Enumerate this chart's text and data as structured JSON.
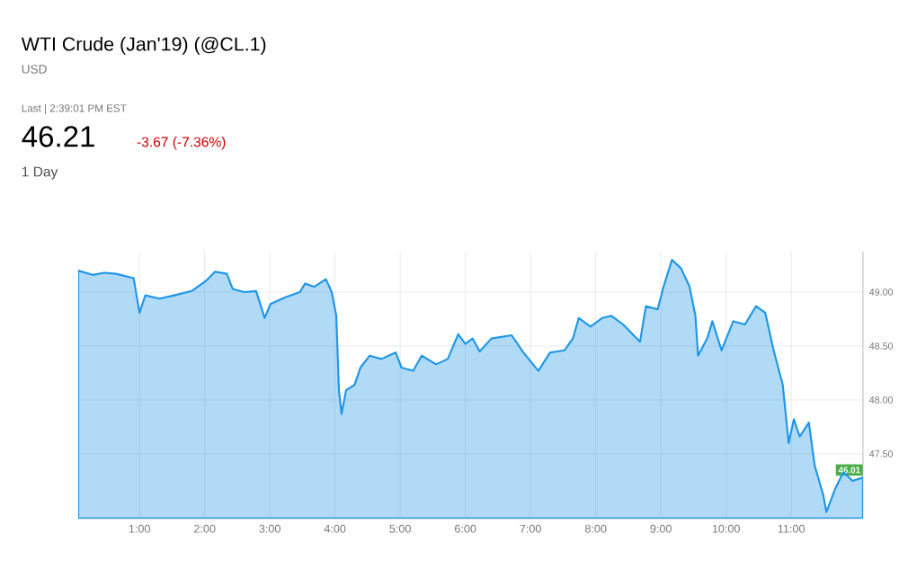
{
  "chart_data": {
    "type": "area",
    "title": "WTI Crude (Jan'19) (@CL.1)",
    "subtitle": "USD",
    "annotations": [
      "Last | 2:39:01 PM EST",
      "46.21",
      "-3.67 (-7.36%)",
      "1 Day",
      "46.01"
    ],
    "color": "#1e96e6",
    "grid": true,
    "x": [
      0.06,
      0.28,
      0.46,
      0.64,
      0.91,
      1.0,
      1.09,
      1.31,
      1.53,
      1.8,
      2.03,
      2.16,
      2.34,
      2.43,
      2.61,
      2.79,
      2.92,
      3.01,
      3.23,
      3.46,
      3.54,
      3.68,
      3.86,
      3.95,
      4.02,
      4.06,
      4.1,
      4.17,
      4.3,
      4.39,
      4.53,
      4.71,
      4.93,
      5.02,
      5.2,
      5.33,
      5.55,
      5.73,
      5.89,
      6.0,
      6.11,
      6.22,
      6.4,
      6.71,
      6.89,
      7.12,
      7.3,
      7.52,
      7.65,
      7.74,
      7.92,
      8.1,
      8.24,
      8.42,
      8.68,
      8.77,
      8.95,
      9.04,
      9.17,
      9.31,
      9.44,
      9.53,
      9.57,
      9.71,
      9.79,
      9.93,
      10.11,
      10.29,
      10.46,
      10.6,
      10.73,
      10.87,
      10.96,
      11.04,
      11.13,
      11.27,
      11.36,
      11.49,
      11.54,
      11.67,
      11.8,
      11.94,
      12.1
    ],
    "values": [
      49.2,
      49.16,
      49.18,
      49.17,
      49.13,
      48.81,
      48.97,
      48.94,
      48.97,
      49.01,
      49.11,
      49.19,
      49.17,
      49.03,
      49.0,
      49.01,
      48.76,
      48.89,
      48.95,
      49.0,
      49.08,
      49.05,
      49.12,
      49.0,
      48.78,
      48.09,
      47.87,
      48.09,
      48.14,
      48.3,
      48.41,
      48.38,
      48.44,
      48.3,
      48.27,
      48.41,
      48.33,
      48.38,
      48.61,
      48.52,
      48.57,
      48.45,
      48.57,
      48.6,
      48.44,
      48.27,
      48.44,
      48.46,
      48.57,
      48.76,
      48.68,
      48.76,
      48.78,
      48.7,
      48.54,
      48.87,
      48.84,
      49.05,
      49.3,
      49.22,
      49.05,
      48.78,
      48.41,
      48.57,
      48.73,
      48.46,
      48.73,
      48.7,
      48.87,
      48.81,
      48.46,
      48.14,
      47.6,
      47.82,
      47.66,
      47.79,
      47.39,
      47.12,
      46.96,
      47.17,
      47.33,
      47.25,
      47.28
    ],
    "xlim": [
      0.06,
      12.1
    ],
    "ylim": [
      46.9,
      49.38
    ],
    "xticks": [
      {
        "value": 1,
        "label": "1:00"
      },
      {
        "value": 2,
        "label": "2:00"
      },
      {
        "value": 3,
        "label": "3:00"
      },
      {
        "value": 4,
        "label": "4:00"
      },
      {
        "value": 5,
        "label": "5:00"
      },
      {
        "value": 6,
        "label": "6:00"
      },
      {
        "value": 7,
        "label": "7:00"
      },
      {
        "value": 8,
        "label": "8:00"
      },
      {
        "value": 9,
        "label": "9:00"
      },
      {
        "value": 10,
        "label": "10:00"
      },
      {
        "value": 11,
        "label": "11:00"
      }
    ],
    "yticks": [
      {
        "value": 47.5,
        "label": "47.50"
      },
      {
        "value": 48,
        "label": "48.00"
      },
      {
        "value": 48.5,
        "label": "48.50"
      },
      {
        "value": 49,
        "label": "49.00"
      }
    ]
  }
}
